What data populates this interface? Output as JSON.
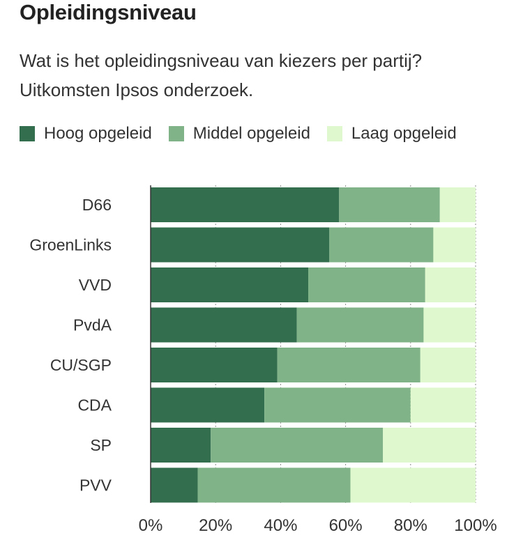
{
  "title": "Opleidingsniveau",
  "subtitle": "Wat is het opleidingsniveau van kiezers per partij? Uitkomsten Ipsos onderzoek.",
  "chart_data": {
    "type": "bar",
    "orientation": "horizontal",
    "stacked": true,
    "categories": [
      "D66",
      "GroenLinks",
      "VVD",
      "PvdA",
      "CU/SGP",
      "CDA",
      "SP",
      "PVV"
    ],
    "series": [
      {
        "name": "Hoog opgeleid",
        "color": "#336e4e",
        "values": [
          58,
          55,
          48.5,
          45,
          39,
          35,
          18.5,
          14.5
        ]
      },
      {
        "name": "Middel opgeleid",
        "color": "#80b387",
        "values": [
          31,
          32,
          36,
          39,
          44,
          45,
          53,
          47
        ]
      },
      {
        "name": "Laag opgeleid",
        "color": "#dff8cd",
        "values": [
          11,
          13,
          15.5,
          16,
          17,
          20,
          28.5,
          38.5
        ]
      }
    ],
    "xlim": [
      0,
      100
    ],
    "x_ticks": [
      "0%",
      "20%",
      "40%",
      "60%",
      "80%",
      "100%"
    ],
    "x_tick_values": [
      0,
      20,
      40,
      60,
      80,
      100
    ],
    "grid": true,
    "legend_position": "top-left"
  }
}
